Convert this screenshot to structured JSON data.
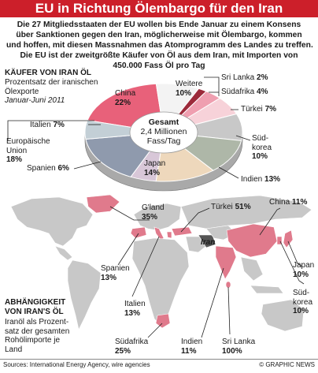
{
  "title": "EU in Richtung Ölembargo für den Iran",
  "intro": [
    "Die 27 Mitgliedsstaaten der EU wollen bis Ende Januar zu einem Konsens",
    "über Sanktionen gegen den Iran, möglicherweise mit Ölembargo, kommen",
    "und hoffen, mit diesen Massnahmen das Atomprogramm des Landes zu treffen.",
    "Die EU ist der zweitgrößte Käufer von Öl aus dem Iran, mit Importen von",
    "450.000 Fass Öl pro Tag"
  ],
  "buyers": {
    "heading": "KÄUFER VON IRAN ÖL",
    "sub1": "Prozentsatz der iranischen",
    "sub2": "Ölexporte",
    "sub3": "Januar-Juni 2011"
  },
  "dependency": {
    "heading1": "ABHÄNGIGKEIT",
    "heading2": "VON IRAN'S ÖL",
    "sub": [
      "Iranöl als Prozent-",
      "satz der gesamten",
      "Rohölimporte je",
      "Land"
    ]
  },
  "donut_center": {
    "label": "Gesamt",
    "line1": "2,4 Millionen",
    "line2": "Fass/Tag"
  },
  "colors": {
    "china": "#e8617a",
    "weitere": "#f3f3f3",
    "sri_lanka": "#9c2a3a",
    "suedafrika": "#ef9fb0",
    "tuerkei": "#f7d2d9",
    "suedkorea": "#c8c8c8",
    "indien": "#aeb7a8",
    "japan": "#eed8bc",
    "spanien": "#d8c7d8",
    "eu": "#8f9aad",
    "italien": "#c3cfd6",
    "map_land": "#c8c8c8",
    "map_highlight": "#e07a8c",
    "map_water": "#ffffff",
    "title_red": "#cc1f2a"
  },
  "map_labels": {
    "iran": "Iran"
  },
  "chart_data": [
    {
      "type": "pie",
      "title": "KÄUFER VON IRAN ÖL",
      "subtitle": "Prozentsatz der iranischen Ölexporte, Januar-Juni 2011",
      "center": "Gesamt 2,4 Millionen Fass/Tag",
      "slices": [
        {
          "name": "China",
          "value": 22
        },
        {
          "name": "Weitere",
          "value": 10
        },
        {
          "name": "Sri Lanka",
          "value": 2
        },
        {
          "name": "Südafrika",
          "value": 4
        },
        {
          "name": "Türkei",
          "value": 7
        },
        {
          "name": "Süd-korea",
          "value": 10
        },
        {
          "name": "Indien",
          "value": 13
        },
        {
          "name": "Japan",
          "value": 14
        },
        {
          "name": "Spanien",
          "value": 6
        },
        {
          "name": "Europäische Union",
          "value": 18
        },
        {
          "name": "Italien",
          "value": 7
        }
      ]
    },
    {
      "type": "table",
      "title": "ABHÄNGIGKEIT VON IRAN'S ÖL",
      "subtitle": "Iranöl als Prozentsatz der gesamten Rohölimporte je Land",
      "rows": [
        {
          "name": "G'land",
          "value": 35
        },
        {
          "name": "Türkei",
          "value": 51
        },
        {
          "name": "China",
          "value": 11
        },
        {
          "name": "Spanien",
          "value": 13
        },
        {
          "name": "Japan",
          "value": 10
        },
        {
          "name": "Süd-korea",
          "value": 10
        },
        {
          "name": "Italien",
          "value": 13
        },
        {
          "name": "Südafrika",
          "value": 25
        },
        {
          "name": "Indien",
          "value": 11
        },
        {
          "name": "Sri Lanka",
          "value": 100
        }
      ]
    }
  ],
  "footer": {
    "source": "Sources: International Energy Agency, wire agencies",
    "credit": "© GRAPHIC NEWS"
  }
}
